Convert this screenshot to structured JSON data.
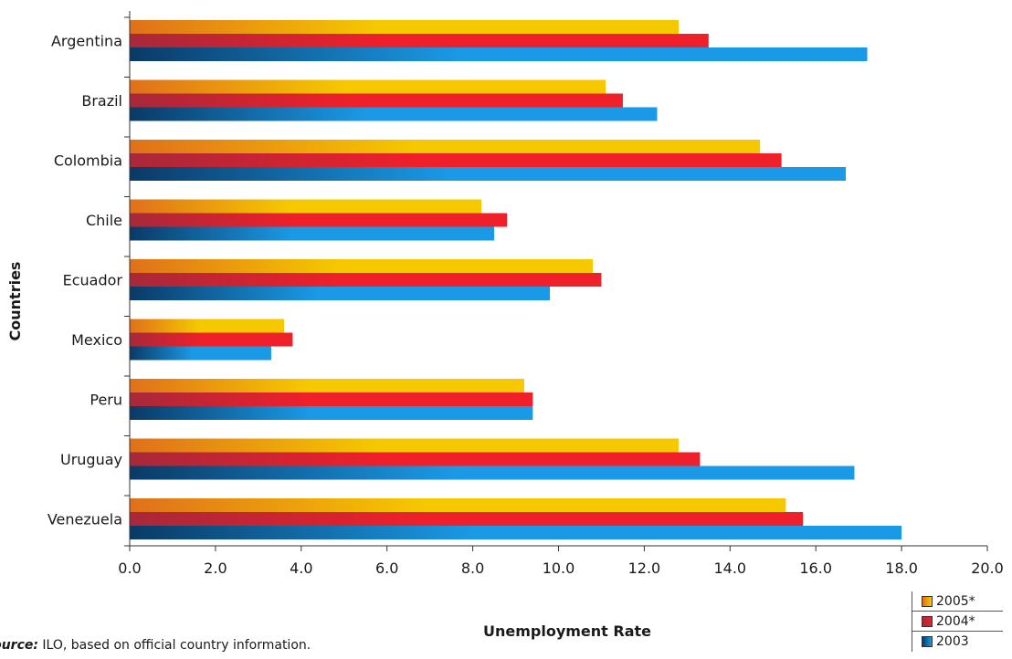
{
  "chart_data": {
    "type": "bar",
    "orientation": "horizontal",
    "categories": [
      "Argentina",
      "Brazil",
      "Colombia",
      "Chile",
      "Ecuador",
      "Mexico",
      "Peru",
      "Uruguay",
      "Venezuela"
    ],
    "series": [
      {
        "name": "2005*",
        "values": [
          12.8,
          11.1,
          14.7,
          8.2,
          10.8,
          3.6,
          9.2,
          12.8,
          15.3
        ]
      },
      {
        "name": "2004*",
        "values": [
          13.5,
          11.5,
          15.2,
          8.8,
          11.0,
          3.8,
          9.4,
          13.3,
          15.7
        ]
      },
      {
        "name": "2003",
        "values": [
          17.2,
          12.3,
          16.7,
          8.5,
          9.8,
          3.3,
          9.4,
          16.9,
          18.0
        ]
      }
    ],
    "xlabel": "Unemployment Rate",
    "ylabel": "Countries",
    "xlim": [
      0,
      20
    ],
    "xticks": [
      "0.0",
      "2.0",
      "4.0",
      "6.0",
      "8.0",
      "10.0",
      "12.0",
      "14.0",
      "16.0",
      "18.0",
      "20.0"
    ],
    "legend": "bottom-right",
    "grid": false,
    "colors": {
      "2005*": [
        "#e0701a",
        "#f5c800"
      ],
      "2004*": [
        "#a8283a",
        "#f0202a"
      ],
      "2003": [
        "#0a3a66",
        "#1a9ae6"
      ]
    }
  },
  "source": {
    "label": "Source:",
    "text": " ILO, based on official country information."
  }
}
